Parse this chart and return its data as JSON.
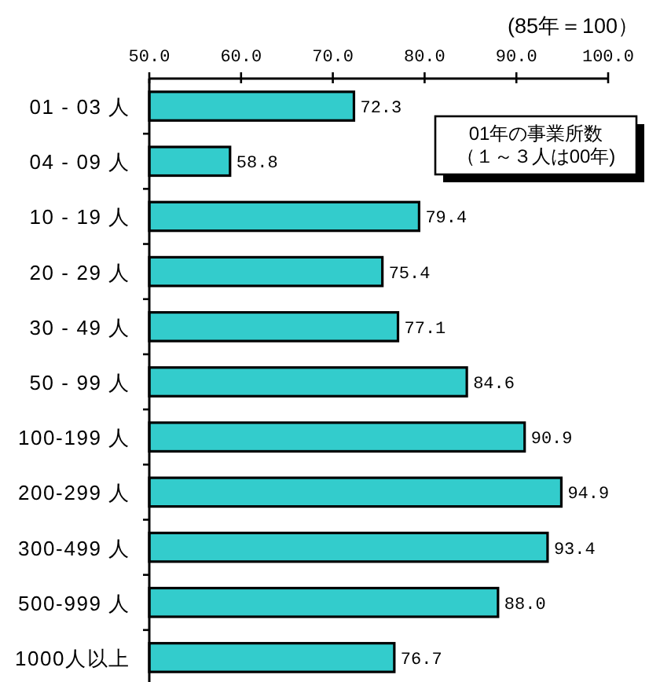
{
  "chart_data": {
    "type": "bar",
    "orientation": "horizontal",
    "title": "(85年＝100）",
    "categories": [
      "01 - 03 人",
      "04 - 09 人",
      "10 - 19 人",
      "20 - 29 人",
      "30 - 49 人",
      "50 - 99 人",
      "100-199 人",
      "200-299 人",
      "300-499 人",
      "500-999 人",
      "1000人以上"
    ],
    "values": [
      72.3,
      58.8,
      79.4,
      75.4,
      77.1,
      84.6,
      90.9,
      94.9,
      93.4,
      88.0,
      76.7
    ],
    "value_labels": [
      "72.3",
      "58.8",
      "79.4",
      "75.4",
      "77.1",
      "84.6",
      "90.9",
      "94.9",
      "93.4",
      "88.0",
      "76.7"
    ],
    "color": "#33cccc",
    "xlim": [
      50,
      100
    ],
    "xticks": [
      {
        "value": 50,
        "label": "50.0"
      },
      {
        "value": 60,
        "label": "60.0"
      },
      {
        "value": 70,
        "label": "70.0"
      },
      {
        "value": 80,
        "label": "80.0"
      },
      {
        "value": 90,
        "label": "90.0"
      },
      {
        "value": 100,
        "label": "100.0"
      }
    ],
    "annotations": [
      "01年の事業所数",
      "（１～３人は00年)"
    ]
  }
}
